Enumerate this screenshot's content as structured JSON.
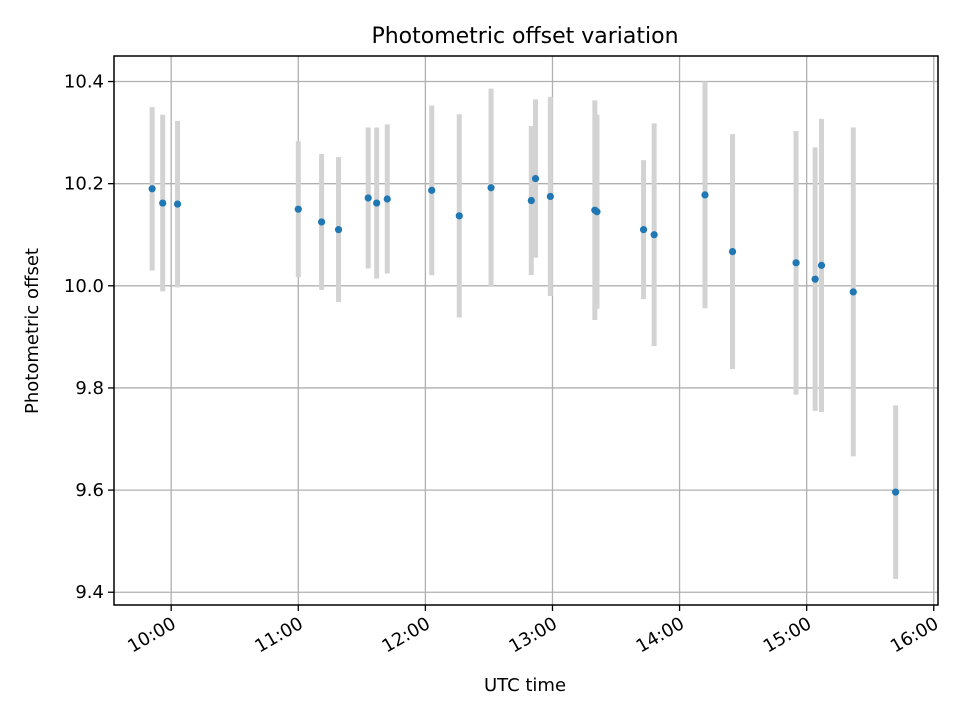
{
  "chart_data": {
    "type": "scatter",
    "title": "Photometric offset variation",
    "xlabel": "UTC time",
    "ylabel": "Photometric offset",
    "xlim": [
      "09:33",
      "16:02"
    ],
    "ylim": [
      9.375,
      10.45
    ],
    "x_ticks": [
      "10:00",
      "11:00",
      "12:00",
      "13:00",
      "14:00",
      "15:00",
      "16:00"
    ],
    "y_ticks": [
      "9.4",
      "9.6",
      "9.8",
      "10.0",
      "10.2",
      "10.4"
    ],
    "grid": true,
    "colors": {
      "points": "#1f77b4",
      "errorbars": "#d3d3d3",
      "grid": "#b0b0b0"
    },
    "points": [
      {
        "x": "09:51",
        "y": 10.19,
        "err": 0.16
      },
      {
        "x": "09:56",
        "y": 10.162,
        "err": 0.173
      },
      {
        "x": "10:03",
        "y": 10.16,
        "err": 0.163
      },
      {
        "x": "11:00",
        "y": 10.15,
        "err": 0.133
      },
      {
        "x": "11:11",
        "y": 10.125,
        "err": 0.133
      },
      {
        "x": "11:19",
        "y": 10.11,
        "err": 0.142
      },
      {
        "x": "11:33",
        "y": 10.172,
        "err": 0.138
      },
      {
        "x": "11:37",
        "y": 10.162,
        "err": 0.148
      },
      {
        "x": "11:42",
        "y": 10.17,
        "err": 0.146
      },
      {
        "x": "12:03",
        "y": 10.187,
        "err": 0.166
      },
      {
        "x": "12:16",
        "y": 10.137,
        "err": 0.199
      },
      {
        "x": "12:31",
        "y": 10.192,
        "err": 0.194
      },
      {
        "x": "12:50",
        "y": 10.167,
        "err": 0.146
      },
      {
        "x": "12:52",
        "y": 10.21,
        "err": 0.155
      },
      {
        "x": "12:59",
        "y": 10.175,
        "err": 0.195
      },
      {
        "x": "13:20",
        "y": 10.148,
        "err": 0.215
      },
      {
        "x": "13:21",
        "y": 10.145,
        "err": 0.19
      },
      {
        "x": "13:43",
        "y": 10.11,
        "err": 0.136
      },
      {
        "x": "13:48",
        "y": 10.1,
        "err": 0.218
      },
      {
        "x": "14:12",
        "y": 10.178,
        "err": 0.222
      },
      {
        "x": "14:25",
        "y": 10.067,
        "err": 0.23
      },
      {
        "x": "14:55",
        "y": 10.045,
        "err": 0.258
      },
      {
        "x": "15:04",
        "y": 10.013,
        "err": 0.258
      },
      {
        "x": "15:07",
        "y": 10.04,
        "err": 0.287
      },
      {
        "x": "15:22",
        "y": 9.988,
        "err": 0.322
      },
      {
        "x": "15:42",
        "y": 9.596,
        "err": 0.17
      }
    ]
  }
}
